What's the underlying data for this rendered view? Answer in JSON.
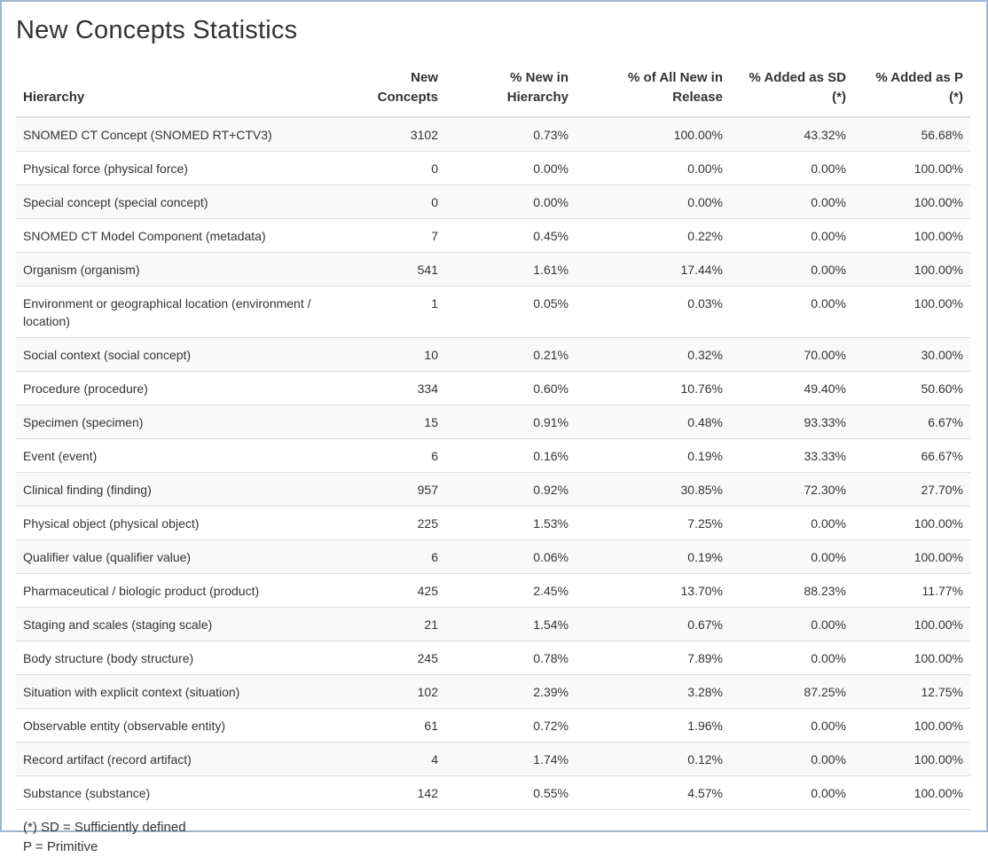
{
  "page": {
    "title": "New Concepts Statistics"
  },
  "table": {
    "headers": {
      "hierarchy": "Hierarchy",
      "new_concepts_1": "New",
      "new_concepts_2": "Concepts",
      "pct_new_in_hierarchy_1": "% New in",
      "pct_new_in_hierarchy_2": "Hierarchy",
      "pct_all_new_1": "% of All New in",
      "pct_all_new_2": "Release",
      "pct_sd_1": "% Added as SD",
      "pct_sd_2": "(*)",
      "pct_p_1": "% Added as P",
      "pct_p_2": "(*)"
    },
    "rows": [
      {
        "hierarchy": "SNOMED CT Concept (SNOMED RT+CTV3)",
        "new": "3102",
        "pct_hier": "0.73%",
        "pct_all": "100.00%",
        "pct_sd": "43.32%",
        "pct_p": "56.68%"
      },
      {
        "hierarchy": "Physical force (physical force)",
        "new": "0",
        "pct_hier": "0.00%",
        "pct_all": "0.00%",
        "pct_sd": "0.00%",
        "pct_p": "100.00%"
      },
      {
        "hierarchy": "Special concept (special concept)",
        "new": "0",
        "pct_hier": "0.00%",
        "pct_all": "0.00%",
        "pct_sd": "0.00%",
        "pct_p": "100.00%"
      },
      {
        "hierarchy": "SNOMED CT Model Component (metadata)",
        "new": "7",
        "pct_hier": "0.45%",
        "pct_all": "0.22%",
        "pct_sd": "0.00%",
        "pct_p": "100.00%"
      },
      {
        "hierarchy": "Organism (organism)",
        "new": "541",
        "pct_hier": "1.61%",
        "pct_all": "17.44%",
        "pct_sd": "0.00%",
        "pct_p": "100.00%"
      },
      {
        "hierarchy": "Environment or geographical location (environment / location)",
        "new": "1",
        "pct_hier": "0.05%",
        "pct_all": "0.03%",
        "pct_sd": "0.00%",
        "pct_p": "100.00%"
      },
      {
        "hierarchy": "Social context (social concept)",
        "new": "10",
        "pct_hier": "0.21%",
        "pct_all": "0.32%",
        "pct_sd": "70.00%",
        "pct_p": "30.00%"
      },
      {
        "hierarchy": "Procedure (procedure)",
        "new": "334",
        "pct_hier": "0.60%",
        "pct_all": "10.76%",
        "pct_sd": "49.40%",
        "pct_p": "50.60%"
      },
      {
        "hierarchy": "Specimen (specimen)",
        "new": "15",
        "pct_hier": "0.91%",
        "pct_all": "0.48%",
        "pct_sd": "93.33%",
        "pct_p": "6.67%"
      },
      {
        "hierarchy": "Event (event)",
        "new": "6",
        "pct_hier": "0.16%",
        "pct_all": "0.19%",
        "pct_sd": "33.33%",
        "pct_p": "66.67%"
      },
      {
        "hierarchy": "Clinical finding (finding)",
        "new": "957",
        "pct_hier": "0.92%",
        "pct_all": "30.85%",
        "pct_sd": "72.30%",
        "pct_p": "27.70%"
      },
      {
        "hierarchy": "Physical object (physical object)",
        "new": "225",
        "pct_hier": "1.53%",
        "pct_all": "7.25%",
        "pct_sd": "0.00%",
        "pct_p": "100.00%"
      },
      {
        "hierarchy": "Qualifier value (qualifier value)",
        "new": "6",
        "pct_hier": "0.06%",
        "pct_all": "0.19%",
        "pct_sd": "0.00%",
        "pct_p": "100.00%"
      },
      {
        "hierarchy": "Pharmaceutical / biologic product (product)",
        "new": "425",
        "pct_hier": "2.45%",
        "pct_all": "13.70%",
        "pct_sd": "88.23%",
        "pct_p": "11.77%"
      },
      {
        "hierarchy": "Staging and scales (staging scale)",
        "new": "21",
        "pct_hier": "1.54%",
        "pct_all": "0.67%",
        "pct_sd": "0.00%",
        "pct_p": "100.00%"
      },
      {
        "hierarchy": "Body structure (body structure)",
        "new": "245",
        "pct_hier": "0.78%",
        "pct_all": "7.89%",
        "pct_sd": "0.00%",
        "pct_p": "100.00%"
      },
      {
        "hierarchy": "Situation with explicit context (situation)",
        "new": "102",
        "pct_hier": "2.39%",
        "pct_all": "3.28%",
        "pct_sd": "87.25%",
        "pct_p": "12.75%"
      },
      {
        "hierarchy": "Observable entity (observable entity)",
        "new": "61",
        "pct_hier": "0.72%",
        "pct_all": "1.96%",
        "pct_sd": "0.00%",
        "pct_p": "100.00%"
      },
      {
        "hierarchy": "Record artifact (record artifact)",
        "new": "4",
        "pct_hier": "1.74%",
        "pct_all": "0.12%",
        "pct_sd": "0.00%",
        "pct_p": "100.00%"
      },
      {
        "hierarchy": "Substance (substance)",
        "new": "142",
        "pct_hier": "0.55%",
        "pct_all": "4.57%",
        "pct_sd": "0.00%",
        "pct_p": "100.00%"
      }
    ]
  },
  "notes": {
    "sd": "(*) SD = Sufficiently defined",
    "p": "P = Primitive"
  },
  "colors": {
    "frame_border": "#9cb6d3",
    "stripe": "#f9f9f9",
    "rule": "#dddddd",
    "text": "#333333"
  }
}
